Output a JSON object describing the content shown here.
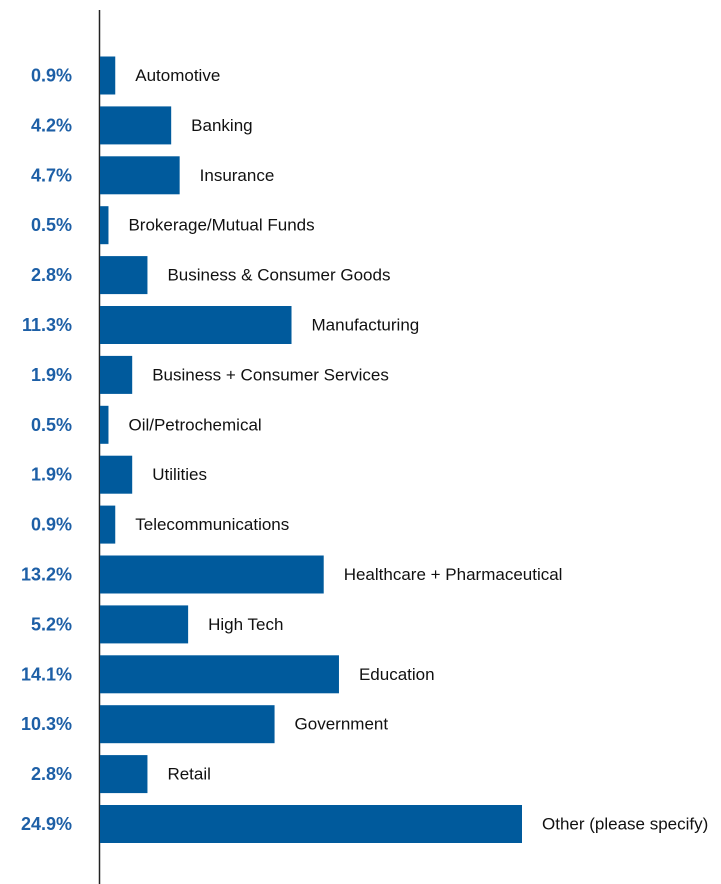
{
  "colors": {
    "bar": "#005a9c",
    "value_label": "#1d5fa6",
    "axis": "#222222",
    "category_label": "#111111"
  },
  "chart_data": {
    "type": "bar",
    "orientation": "horizontal",
    "categories": [
      "Automotive",
      "Banking",
      "Insurance",
      "Brokerage/Mutual Funds",
      "Business & Consumer Goods",
      "Manufacturing",
      "Business + Consumer Services",
      "Oil/Petrochemical",
      "Utilities",
      "Telecommunications",
      "Healthcare + Pharmaceutical",
      "High Tech",
      "Education",
      "Government",
      "Retail",
      "Other (please specify)"
    ],
    "values": [
      0.9,
      4.2,
      4.7,
      0.5,
      2.8,
      11.3,
      1.9,
      0.5,
      1.9,
      0.9,
      13.2,
      5.2,
      14.1,
      10.3,
      2.8,
      24.9
    ],
    "value_labels": [
      "0.9%",
      "4.2%",
      "4.7%",
      "0.5%",
      "2.8%",
      "11.3%",
      "1.9%",
      "0.5%",
      "1.9%",
      "0.9%",
      "13.2%",
      "5.2%",
      "14.1%",
      "10.3%",
      "2.8%",
      "24.9%"
    ],
    "xlim": [
      0,
      25
    ],
    "grid": false,
    "legend": "none"
  }
}
